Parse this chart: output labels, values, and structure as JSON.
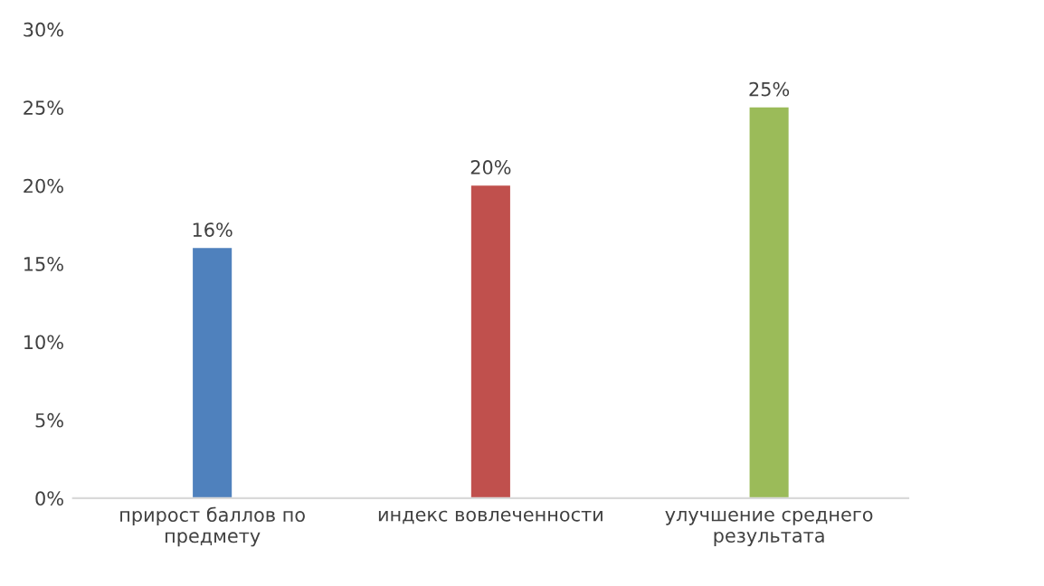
{
  "chart_data": {
    "type": "bar",
    "categories": [
      "прирост баллов по\nпредмету",
      "индекс вовлеченности",
      "улучшение среднего\nрезультата"
    ],
    "values": [
      16,
      20,
      25
    ],
    "colors": [
      "#4f81bd",
      "#c0504d",
      "#9bbb59"
    ],
    "value_labels": [
      "16%",
      "20%",
      "25%"
    ],
    "ylim": [
      0,
      30
    ],
    "yticks": [
      {
        "value": 0,
        "label": "0%"
      },
      {
        "value": 5,
        "label": "5%"
      },
      {
        "value": 10,
        "label": "10%"
      },
      {
        "value": 15,
        "label": "15%"
      },
      {
        "value": 20,
        "label": "20%"
      },
      {
        "value": 25,
        "label": "25%"
      },
      {
        "value": 30,
        "label": "30%"
      }
    ],
    "grid": false,
    "legend": false
  }
}
